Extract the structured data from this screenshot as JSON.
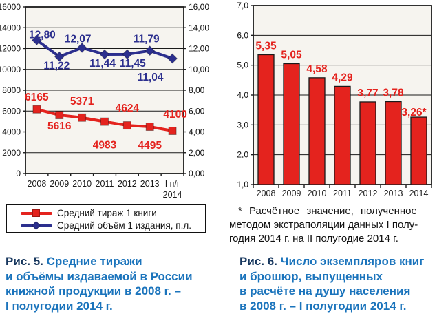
{
  "colors": {
    "red": "#e4231e",
    "blue": "#2c2f8e",
    "black": "#1a1a1a",
    "plot_bg": "#f6f4ef",
    "caption_prefix": "#17375e",
    "caption_body": "#1b74bc"
  },
  "fig5": {
    "legend": {
      "items": [
        {
          "key": "avg-print-run",
          "label": "Средний тираж 1 книги",
          "marker": "square",
          "color": "#e4231e"
        },
        {
          "key": "avg-volume",
          "label": "Средний объём 1 издания, п.л.",
          "marker": "diamond",
          "color": "#2c2f8e"
        }
      ]
    },
    "caption": {
      "prefix": "Рис. 5.",
      "lines": [
        "Средние тиражи",
        "и объёмы издаваемой в России",
        "книжной продукции в 2008 г. –",
        "I полугодии 2014 г."
      ]
    }
  },
  "fig6": {
    "footnote": {
      "lines": [
        "* Расчётное значение, полученное",
        "методом экстраполяции данных I полу-",
        "годия 2014 г. на II полугодие 2014 г."
      ]
    },
    "caption": {
      "prefix": "Рис. 6.",
      "lines": [
        "Число экземпляров книг",
        "и брошюр, выпущенных",
        "в расчёте на душу населения",
        "в 2008 г. – I полугодии 2014 г."
      ]
    }
  },
  "chart_data": [
    {
      "type": "line",
      "title": "Средние тиражи и объёмы издаваемой в России книжной продукции в 2008 г. – I полугодии 2014 г.",
      "categories": [
        "2008",
        "2009",
        "2010",
        "2011",
        "2012",
        "2013",
        "I п/г 2014"
      ],
      "wrap_last_category": true,
      "grid": true,
      "legend_position": "bottom",
      "left_axis": {
        "min": 0,
        "max": 16000,
        "step": 2000,
        "ticks": [
          "0",
          "2000",
          "4000",
          "6000",
          "8000",
          "10000",
          "12000",
          "14000",
          "16000"
        ]
      },
      "right_axis": {
        "min": 0,
        "max": 16,
        "step": 2,
        "ticks": [
          "0,00",
          "2,00",
          "4,00",
          "6,00",
          "8,00",
          "10,00",
          "12,00",
          "14,00",
          "16,00"
        ]
      },
      "series": [
        {
          "key": "avg-print-run",
          "name": "Средний тираж 1 книги",
          "axis": "left",
          "color": "#e4231e",
          "marker": "square",
          "values": [
            6165,
            5616,
            5371,
            4983,
            4624,
            4495,
            4100
          ],
          "labels": [
            "6165",
            "5616",
            "5371",
            "4983",
            "4624",
            "4495",
            "4100"
          ],
          "label_pos": [
            "above",
            "below",
            "above",
            "below",
            "above",
            "below",
            "above"
          ],
          "label_dx": [
            0,
            0,
            0,
            0,
            0,
            0,
            4
          ],
          "label_dy": [
            0,
            0,
            -6,
            18,
            -7,
            11,
            -6
          ],
          "label_offset": {
            "above": -13,
            "below": 21
          }
        },
        {
          "key": "avg-volume",
          "name": "Средний объём 1 издания, п.л.",
          "axis": "right",
          "color": "#2c2f8e",
          "marker": "diamond",
          "values": [
            12.8,
            11.22,
            12.07,
            11.44,
            11.45,
            11.79,
            11.04
          ],
          "labels": [
            "12,80",
            "11,22",
            "12,07",
            "11,44",
            "11,45",
            "11,79",
            "11,04"
          ],
          "label_pos": [
            "above",
            "below",
            "above",
            "below",
            "below",
            "above",
            "below"
          ],
          "label_dx": [
            8,
            -4,
            -6,
            -3,
            8,
            -5,
            -32
          ],
          "label_dy": [
            5,
            0,
            0,
            0,
            0,
            -4,
            14
          ],
          "label_offset": {
            "above": -8,
            "below": 18
          }
        }
      ]
    },
    {
      "type": "bar",
      "title": "Число экземпляров книг и брошюр, выпущенных в расчёте на душу населения в 2008 г. – I полугодии 2014 г.",
      "categories": [
        "2008",
        "2009",
        "2010",
        "2011",
        "2012",
        "2013",
        "2014"
      ],
      "values": [
        5.35,
        5.05,
        4.58,
        4.29,
        3.77,
        3.78,
        3.26
      ],
      "labels": [
        "5,35",
        "5,05",
        "4,58",
        "4,29",
        "3,77",
        "3,78",
        "3,26*"
      ],
      "bar_color": "#e4231e",
      "ylim": [
        1.0,
        7.0
      ],
      "step": 1.0,
      "yticks": [
        "1,0",
        "2,0",
        "3,0",
        "4,0",
        "5,0",
        "6,0",
        "7,0"
      ],
      "grid": true,
      "label_dx": [
        0,
        0,
        0,
        0,
        0,
        0,
        -7
      ],
      "label_dy": [
        0,
        0,
        0,
        0,
        0,
        0,
        6
      ]
    }
  ]
}
